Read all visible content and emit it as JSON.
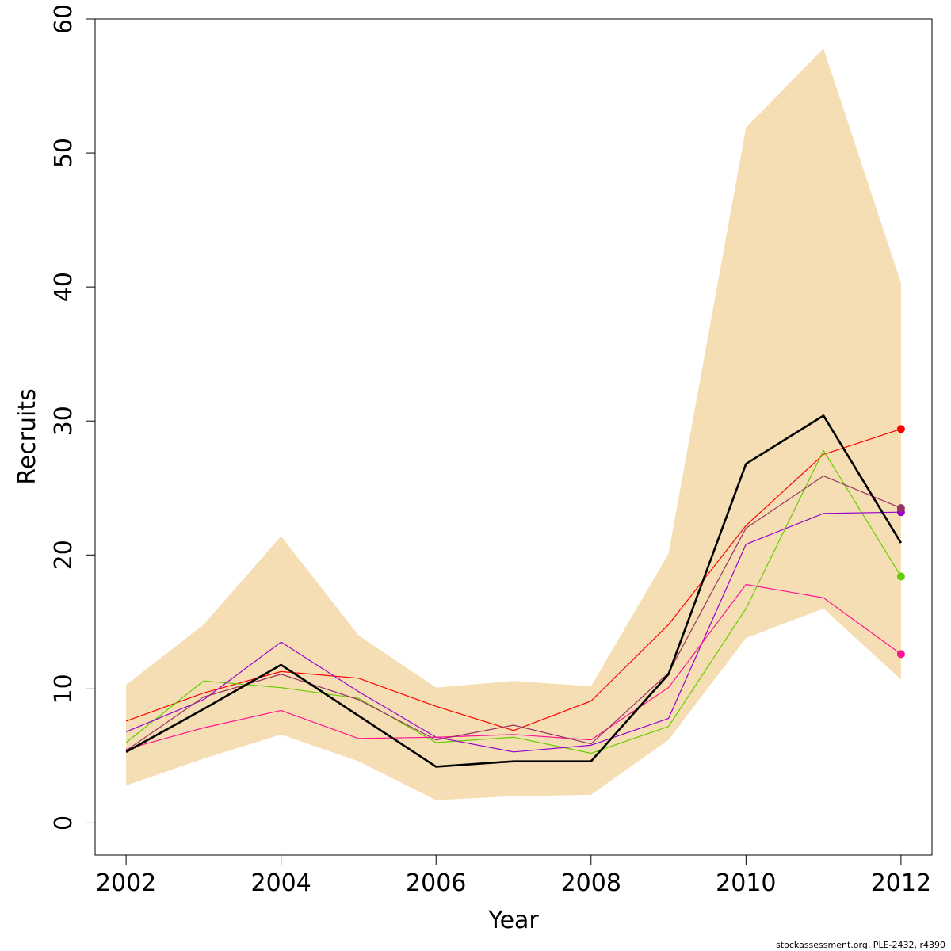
{
  "chart_data": {
    "type": "line",
    "title": "",
    "xlabel": "Year",
    "ylabel": "Recruits",
    "xlim": [
      2001.6,
      2012.4
    ],
    "ylim": [
      -2.4,
      60.0
    ],
    "x_ticks": [
      2002,
      2004,
      2006,
      2008,
      2010,
      2012
    ],
    "y_ticks": [
      0,
      10,
      20,
      30,
      40,
      50,
      60
    ],
    "grid": false,
    "x": [
      2002,
      2003,
      2004,
      2005,
      2006,
      2007,
      2008,
      2009,
      2010,
      2011,
      2012
    ],
    "band": {
      "color": "#f5deb3",
      "upper": [
        10.3,
        14.8,
        21.4,
        14.0,
        10.1,
        10.6,
        10.2,
        20.1,
        51.9,
        57.8,
        40.3
      ],
      "lower": [
        2.8,
        4.8,
        6.6,
        4.6,
        1.7,
        2.0,
        2.1,
        6.2,
        13.8,
        16.0,
        10.7
      ]
    },
    "series": [
      {
        "color": "#ff0000",
        "width": 1.2,
        "endpoint": true,
        "values": [
          7.6,
          9.7,
          11.3,
          10.8,
          8.7,
          6.9,
          9.1,
          14.8,
          22.2,
          27.5,
          29.4
        ]
      },
      {
        "color": "#66cc00",
        "width": 1.2,
        "endpoint": true,
        "values": [
          6.0,
          10.6,
          10.1,
          9.3,
          6.0,
          6.4,
          5.2,
          7.2,
          16.0,
          27.8,
          18.4
        ]
      },
      {
        "color": "#9900cc",
        "width": 1.2,
        "endpoint": true,
        "values": [
          6.8,
          9.2,
          13.5,
          9.8,
          6.4,
          5.3,
          5.8,
          7.8,
          20.8,
          23.1,
          23.2
        ]
      },
      {
        "color": "#ff1493",
        "width": 1.2,
        "endpoint": true,
        "values": [
          5.5,
          7.1,
          8.4,
          6.3,
          6.4,
          6.6,
          6.2,
          10.1,
          17.8,
          16.8,
          12.6
        ]
      },
      {
        "color": "#993366",
        "width": 1.2,
        "endpoint": true,
        "values": [
          5.4,
          9.4,
          11.1,
          9.2,
          6.2,
          7.3,
          5.9,
          11.2,
          22.0,
          25.9,
          23.5
        ]
      },
      {
        "color": "#000000",
        "width": 2.6,
        "endpoint": false,
        "values": [
          5.3,
          8.5,
          11.8,
          8.0,
          4.2,
          4.6,
          4.6,
          11.1,
          26.8,
          30.4,
          20.9
        ]
      }
    ]
  },
  "credit": "stockassessment.org, PLE-2432, r4390"
}
